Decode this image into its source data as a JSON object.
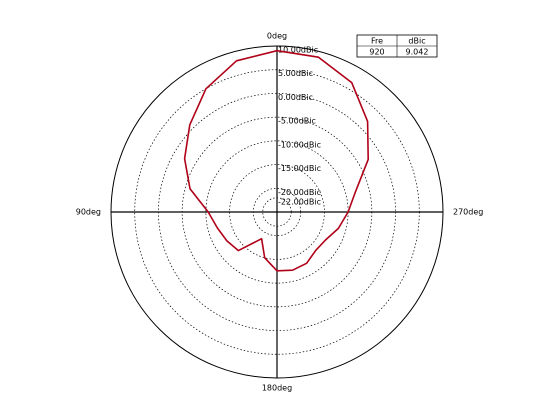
{
  "chart_data": {
    "type": "polar",
    "theta": [
      0,
      15,
      30,
      45,
      60,
      75,
      90,
      105,
      120,
      135,
      150,
      165,
      180,
      195,
      210,
      225,
      240,
      255,
      270,
      285,
      300,
      315,
      330,
      345
    ],
    "theta_zero": "top",
    "theta_direction": "counterclockwise",
    "thetaticks": [
      {
        "value": 0,
        "label": "0deg"
      },
      {
        "value": 90,
        "label": "90deg"
      },
      {
        "value": 180,
        "label": "180deg"
      },
      {
        "value": 270,
        "label": "270deg"
      }
    ],
    "rlim": [
      -25,
      10
    ],
    "rticks": [
      {
        "value": 10,
        "label": "10.00dBic"
      },
      {
        "value": 5,
        "label": "5.00dBic"
      },
      {
        "value": 0,
        "label": "0.00dBic"
      },
      {
        "value": -5,
        "label": "-5.00dBic"
      },
      {
        "value": -10,
        "label": "-10.00dBic"
      },
      {
        "value": -15,
        "label": "-15.00dBic"
      },
      {
        "value": -20,
        "label": "-20.00dBic"
      },
      {
        "value": -22,
        "label": "-22.00dBic"
      }
    ],
    "grid": true,
    "legend_headers": [
      "Fre",
      "dBic"
    ],
    "series": [
      {
        "name": "920",
        "color": "#b00018",
        "peak": 9.042,
        "values": [
          9.0,
          8.0,
          5.0,
          1.0,
          -2.5,
          -6.0,
          -10.5,
          -12.0,
          -12.8,
          -13.5,
          -18.5,
          -15.0,
          -12.6,
          -12.3,
          -12.5,
          -13.5,
          -13.2,
          -11.6,
          -10.0,
          -7.8,
          -2.8,
          2.0,
          6.5,
          8.8
        ]
      }
    ]
  }
}
